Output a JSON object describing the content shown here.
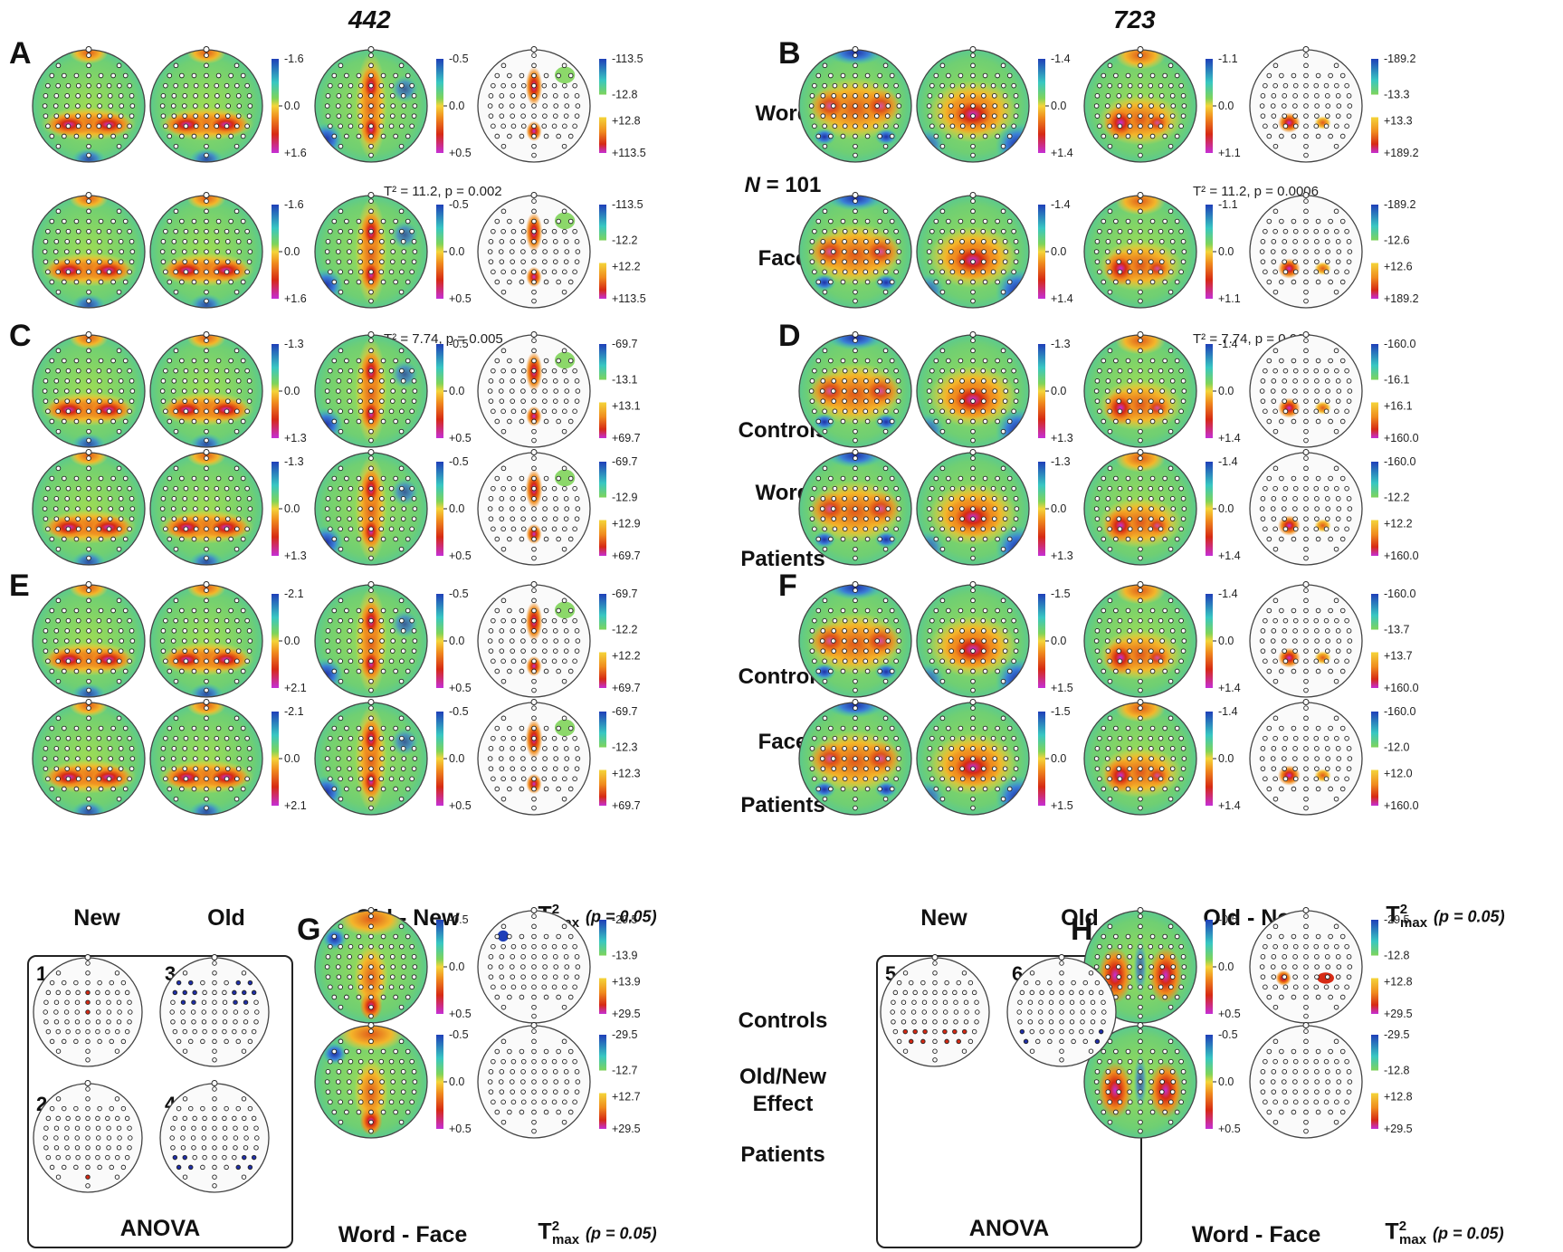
{
  "header": {
    "left_title": "442",
    "right_title": "723"
  },
  "row_labels": {
    "ab_top": "Word",
    "ab_mid_pre": "N",
    "ab_mid_post": " = 101",
    "ab_bottom": "Face",
    "cd_1": "Controls",
    "cd_2": "Word",
    "cd_3": "Patients",
    "ef_1": "Controls",
    "ef_2": "Face",
    "ef_3": "Patients",
    "gh_1": "Controls",
    "gh_2": "Old/New",
    "gh_3": "Effect",
    "gh_4": "Patients"
  },
  "column_labels": {
    "new": "New",
    "old": "Old",
    "old_new": "Old - New",
    "tmax_main": "T",
    "tmax_sup": "2",
    "tmax_sub": "max",
    "tmax_p": "(p = 0.05)",
    "word_face": "Word - Face",
    "anova": "ANOVA"
  },
  "stats": {
    "a1": "T² = 11.2, p = 0.002",
    "a2": "T² = 7.74, p = 0.005",
    "b1": "T² = 11.2, p = 0.0006",
    "b2": "T² = 7.74, p = 0.003"
  },
  "anova_subpanels": [
    "1",
    "3",
    "2",
    "4",
    "5",
    "6"
  ],
  "panels": {
    "A": {
      "letter": "A",
      "rows": [
        {
          "scale": [
            "-1.6",
            "0.0",
            "+1.6"
          ],
          "diff": [
            "-0.5",
            "0.0",
            "+0.5"
          ],
          "tmax": [
            "-113.5",
            "-12.8",
            "+12.8",
            "+113.5"
          ]
        },
        {
          "scale": [
            "-1.6",
            "0.0",
            "+1.6"
          ],
          "diff": [
            "-0.5",
            "0.0",
            "+0.5"
          ],
          "tmax": [
            "-113.5",
            "-12.2",
            "+12.2",
            "+113.5"
          ]
        }
      ]
    },
    "B": {
      "letter": "B",
      "rows": [
        {
          "scale": [
            "-1.4",
            "0.0",
            "+1.4"
          ],
          "diff": [
            "-1.1",
            "0.0",
            "+1.1"
          ],
          "tmax": [
            "-189.2",
            "-13.3",
            "+13.3",
            "+189.2"
          ]
        },
        {
          "scale": [
            "-1.4",
            "0.0",
            "+1.4"
          ],
          "diff": [
            "-1.1",
            "0.0",
            "+1.1"
          ],
          "tmax": [
            "-189.2",
            "-12.6",
            "+12.6",
            "+189.2"
          ]
        }
      ]
    },
    "C": {
      "letter": "C",
      "rows": [
        {
          "scale": [
            "-1.3",
            "0.0",
            "+1.3"
          ],
          "diff": [
            "-0.5",
            "0.0",
            "+0.5"
          ],
          "tmax": [
            "-69.7",
            "-13.1",
            "+13.1",
            "+69.7"
          ]
        },
        {
          "scale": [
            "-1.3",
            "0.0",
            "+1.3"
          ],
          "diff": [
            "-0.5",
            "0.0",
            "+0.5"
          ],
          "tmax": [
            "-69.7",
            "-12.9",
            "+12.9",
            "+69.7"
          ]
        }
      ]
    },
    "D": {
      "letter": "D",
      "rows": [
        {
          "scale": [
            "-1.3",
            "0.0",
            "+1.3"
          ],
          "diff": [
            "-1.4",
            "0.0",
            "+1.4"
          ],
          "tmax": [
            "-160.0",
            "-16.1",
            "+16.1",
            "+160.0"
          ]
        },
        {
          "scale": [
            "-1.3",
            "0.0",
            "+1.3"
          ],
          "diff": [
            "-1.4",
            "0.0",
            "+1.4"
          ],
          "tmax": [
            "-160.0",
            "-12.2",
            "+12.2",
            "+160.0"
          ]
        }
      ]
    },
    "E": {
      "letter": "E",
      "rows": [
        {
          "scale": [
            "-2.1",
            "0.0",
            "+2.1"
          ],
          "diff": [
            "-0.5",
            "0.0",
            "+0.5"
          ],
          "tmax": [
            "-69.7",
            "-12.2",
            "+12.2",
            "+69.7"
          ]
        },
        {
          "scale": [
            "-2.1",
            "0.0",
            "+2.1"
          ],
          "diff": [
            "-0.5",
            "0.0",
            "+0.5"
          ],
          "tmax": [
            "-69.7",
            "-12.3",
            "+12.3",
            "+69.7"
          ]
        }
      ]
    },
    "F": {
      "letter": "F",
      "rows": [
        {
          "scale": [
            "-1.5",
            "0.0",
            "+1.5"
          ],
          "diff": [
            "-1.4",
            "0.0",
            "+1.4"
          ],
          "tmax": [
            "-160.0",
            "-13.7",
            "+13.7",
            "+160.0"
          ]
        },
        {
          "scale": [
            "-1.5",
            "0.0",
            "+1.5"
          ],
          "diff": [
            "-1.4",
            "0.0",
            "+1.4"
          ],
          "tmax": [
            "-160.0",
            "-12.0",
            "+12.0",
            "+160.0"
          ]
        }
      ]
    },
    "G": {
      "letter": "G",
      "rows": [
        {
          "diff": [
            "-0.5",
            "0.0",
            "+0.5"
          ],
          "tmax": [
            "-29.5",
            "-13.9",
            "+13.9",
            "+29.5"
          ]
        },
        {
          "diff": [
            "-0.5",
            "0.0",
            "+0.5"
          ],
          "tmax": [
            "-29.5",
            "-12.7",
            "+12.7",
            "+29.5"
          ]
        }
      ]
    },
    "H": {
      "letter": "H",
      "rows": [
        {
          "diff": [
            "-0.5",
            "0.0",
            "+0.5"
          ],
          "tmax": [
            "-29.5",
            "-12.8",
            "+12.8",
            "+29.5"
          ]
        },
        {
          "diff": [
            "-0.5",
            "0.0",
            "+0.5"
          ],
          "tmax": [
            "-29.5",
            "-12.8",
            "+12.8",
            "+29.5"
          ]
        }
      ]
    }
  },
  "colors": {
    "blue": "#1f3fb8",
    "cyan": "#38c7c2",
    "green": "#7fd45a",
    "yellow": "#f4d53a",
    "orange": "#f08c1e",
    "red": "#d62a14",
    "magenta": "#c52fd6",
    "outline": "#555555"
  }
}
